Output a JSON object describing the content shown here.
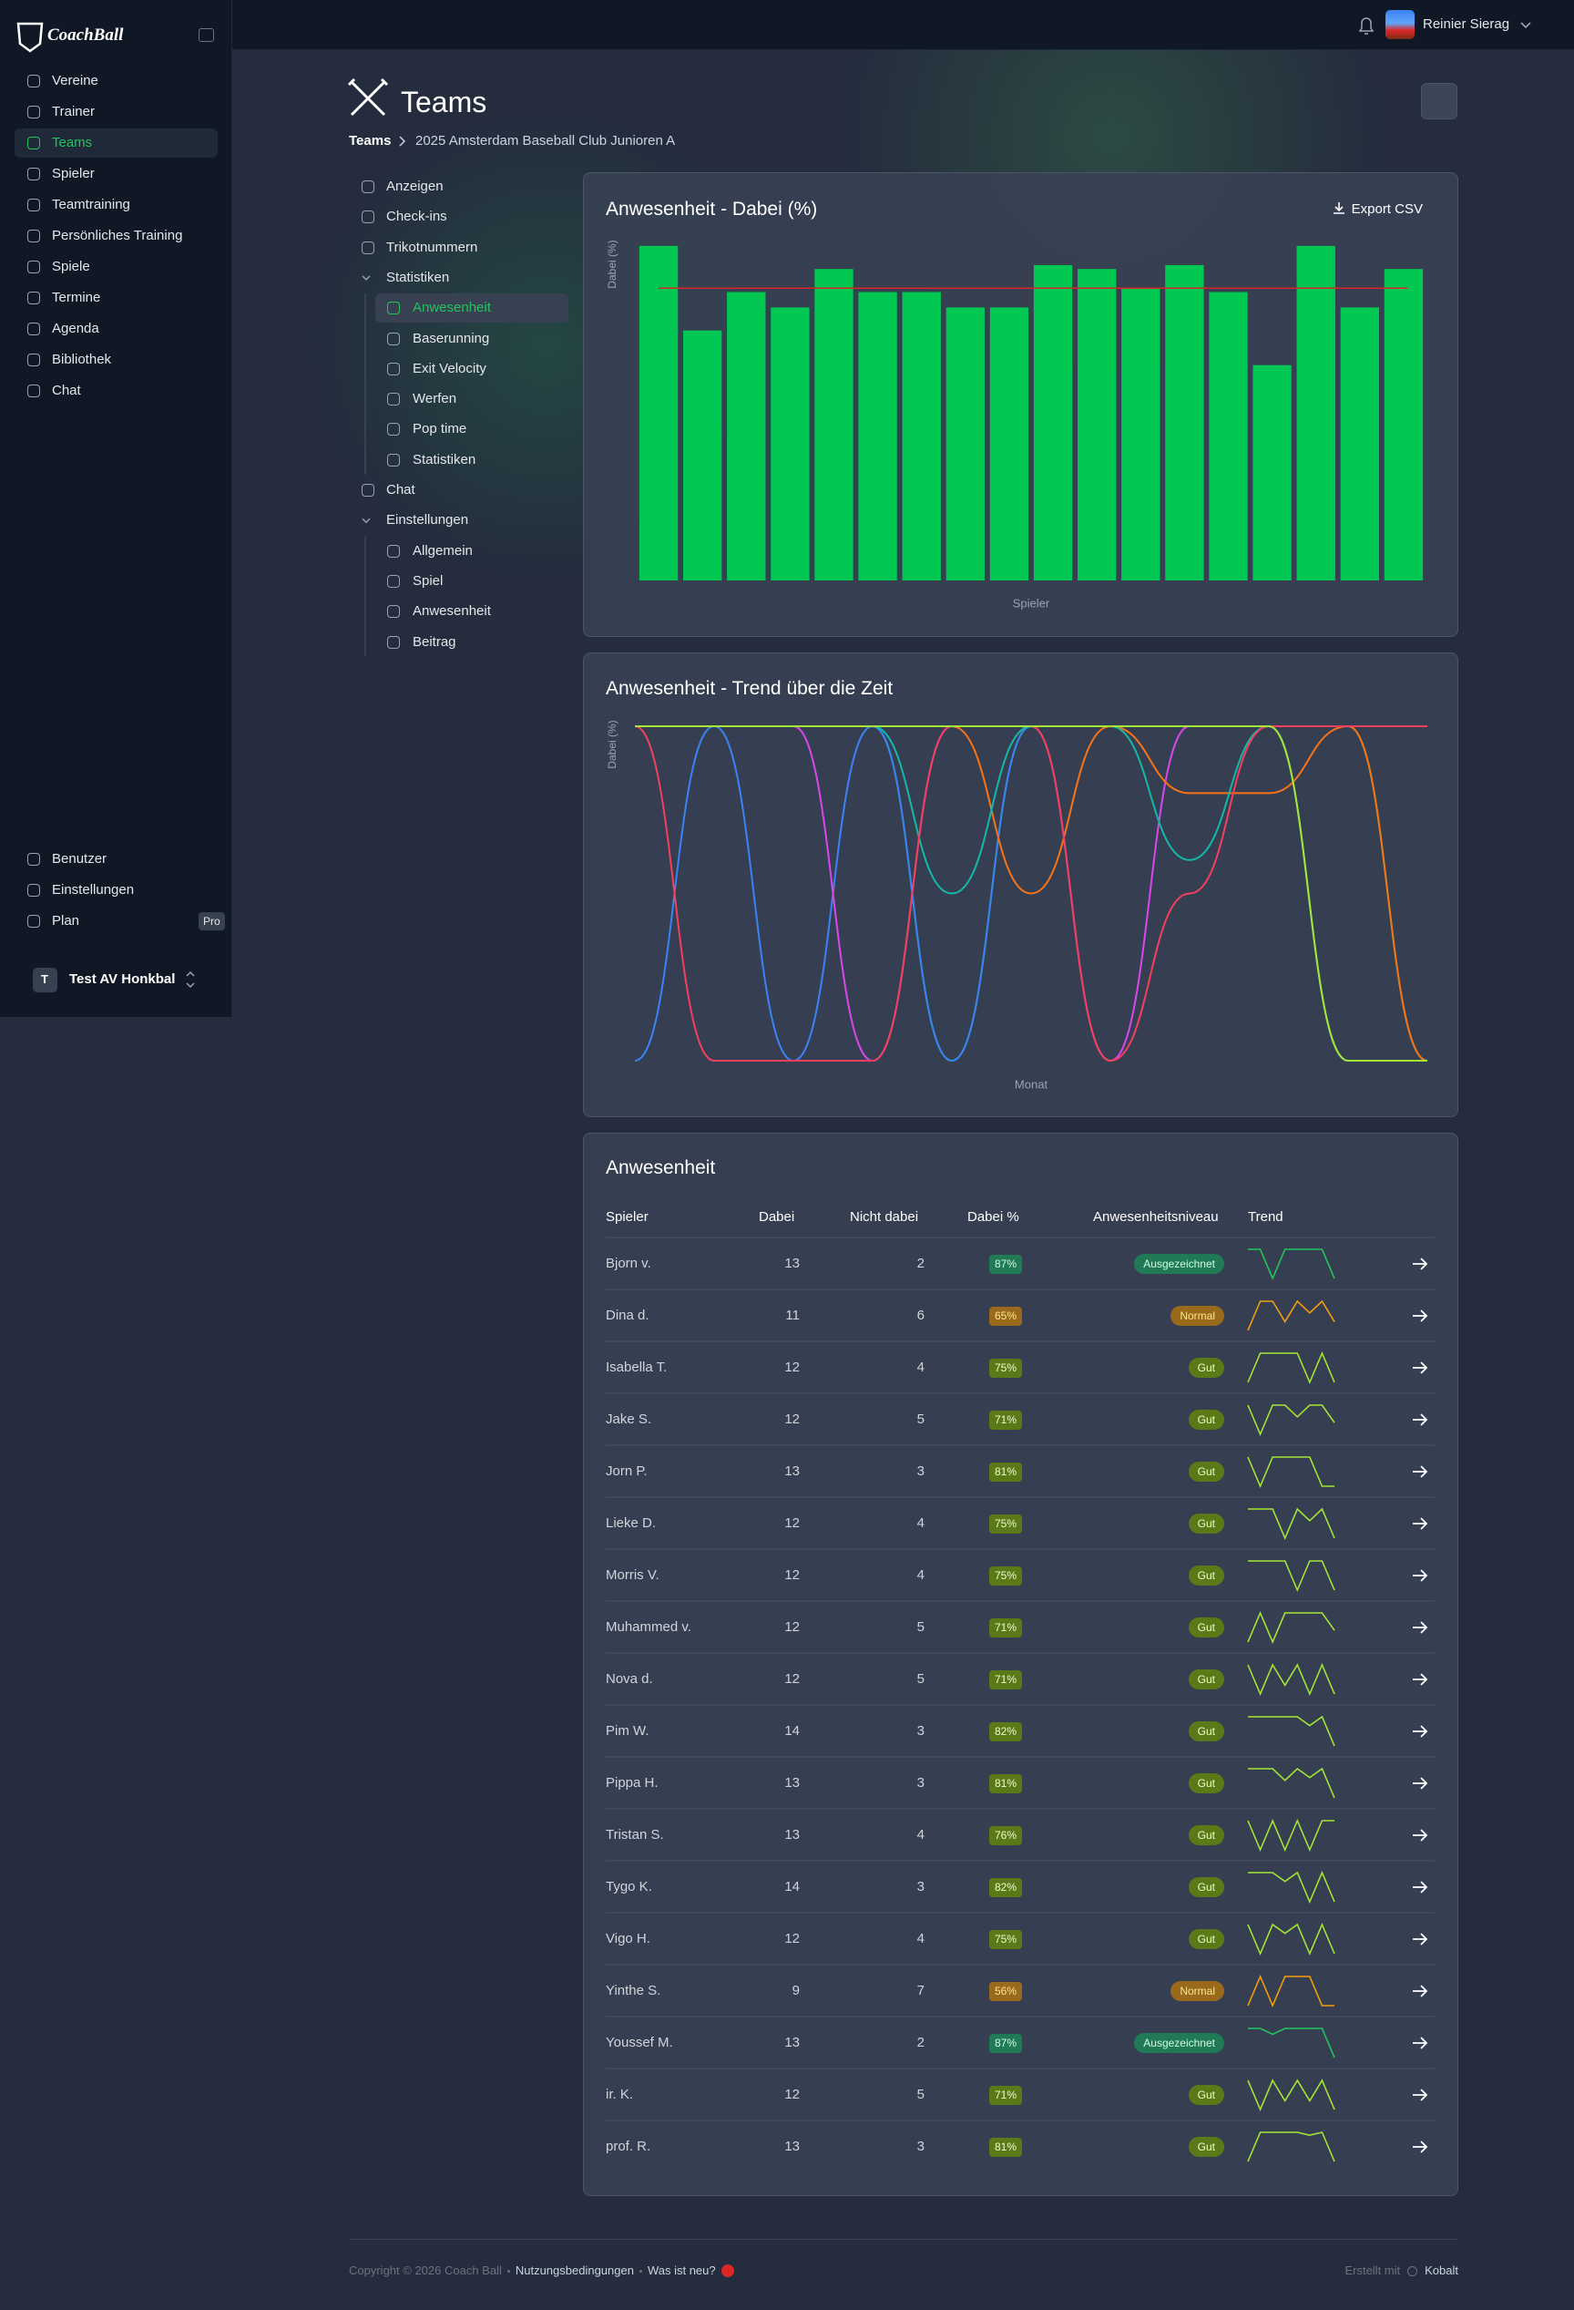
{
  "sidebar": {
    "brand": "CoachBall",
    "nav": [
      "Vereine",
      "Trainer",
      "Teams",
      "Spieler",
      "Teamtraining",
      "Persönliches Training",
      "Spiele",
      "Termine",
      "Agenda",
      "Bibliothek",
      "Chat"
    ],
    "active_index": 2,
    "bottom_nav": [
      "Benutzer",
      "Einstellungen",
      "Plan"
    ],
    "plan_badge": "Pro",
    "team": {
      "initial": "T",
      "name": "Test AV Honkbal"
    }
  },
  "topbar": {
    "user": "Reinier Sierag"
  },
  "header": {
    "title": "Teams",
    "breadcrumb": [
      "Teams",
      "2025 Amsterdam Baseball Club Junioren A"
    ]
  },
  "subnav": [
    {
      "label": "Anzeigen"
    },
    {
      "label": "Check-ins"
    },
    {
      "label": "Trikotnummern"
    },
    {
      "label": "Statistiken",
      "children": [
        {
          "label": "Anwesenheit",
          "active": true
        },
        {
          "label": "Baserunning"
        },
        {
          "label": "Exit Velocity"
        },
        {
          "label": "Werfen"
        },
        {
          "label": "Pop time"
        },
        {
          "label": "Statistiken"
        }
      ]
    },
    {
      "label": "Chat"
    },
    {
      "label": "Einstellungen",
      "children": [
        {
          "label": "Allgemein"
        },
        {
          "label": "Spiel"
        },
        {
          "label": "Anwesenheit"
        },
        {
          "label": "Beitrag"
        }
      ]
    }
  ],
  "chart_data": [
    {
      "type": "bar",
      "title": "Anwesenheit - Dabei (%)",
      "button": "Export CSV",
      "ylabel": "Dabei (%)",
      "xlabel": "Spieler",
      "color": "#00c853",
      "values": [
        87,
        65,
        75,
        71,
        81,
        75,
        75,
        71,
        71,
        82,
        81,
        76,
        82,
        75,
        56,
        87,
        71,
        81
      ],
      "ylim": [
        0,
        100
      ],
      "mean": 76,
      "mean_color": "#dc2626"
    },
    {
      "type": "line",
      "title": "Anwesenheit - Trend über die Zeit",
      "ylabel": "Dabei (%)",
      "xlabel": "Monat",
      "ylim": [
        0,
        100
      ],
      "series": [
        {
          "color": "#22c55e",
          "values": [
            100,
            100,
            100,
            100,
            0,
            100,
            100,
            100,
            100,
            100,
            0
          ]
        },
        {
          "color": "#3b82f6",
          "values": [
            0,
            100,
            0,
            100,
            0,
            100,
            100,
            100,
            100,
            100,
            100
          ]
        },
        {
          "color": "#d946ef",
          "values": [
            100,
            100,
            100,
            0,
            100,
            100,
            0,
            100,
            100,
            0,
            0
          ]
        },
        {
          "color": "#f97316",
          "values": [
            100,
            100,
            100,
            100,
            100,
            50,
            100,
            80,
            80,
            100,
            0
          ]
        },
        {
          "color": "#14b8a6",
          "values": [
            100,
            100,
            100,
            100,
            50,
            100,
            100,
            60,
            100,
            0,
            0
          ]
        },
        {
          "color": "#f43f5e",
          "values": [
            100,
            0,
            0,
            0,
            100,
            100,
            0,
            50,
            100,
            100,
            100
          ]
        },
        {
          "color": "#a3e635",
          "values": [
            100,
            100,
            100,
            100,
            100,
            100,
            100,
            100,
            100,
            0,
            0
          ]
        }
      ]
    }
  ],
  "table": {
    "title": "Anwesenheit",
    "columns": [
      "Spieler",
      "Dabei",
      "Nicht dabei",
      "Dabei %",
      "Anwesenheitsniveau",
      "Trend"
    ],
    "trend_ylim": [
      0,
      100
    ],
    "rows": [
      {
        "player": "Bjorn v.",
        "present": 13,
        "absent": 2,
        "pct": "87%",
        "level": "Ausgezeichnet",
        "tone": "excellent",
        "trend": [
          100,
          100,
          0,
          100,
          100,
          100,
          100,
          0
        ]
      },
      {
        "player": "Dina d.",
        "present": 11,
        "absent": 6,
        "pct": "65%",
        "level": "Normal",
        "tone": "normal",
        "trend": [
          0,
          100,
          100,
          30,
          100,
          60,
          100,
          30
        ]
      },
      {
        "player": "Isabella T.",
        "present": 12,
        "absent": 4,
        "pct": "75%",
        "level": "Gut",
        "tone": "good",
        "trend": [
          0,
          100,
          100,
          100,
          100,
          0,
          100,
          0
        ]
      },
      {
        "player": "Jake S.",
        "present": 12,
        "absent": 5,
        "pct": "71%",
        "level": "Gut",
        "tone": "good",
        "trend": [
          100,
          0,
          100,
          100,
          60,
          100,
          100,
          40
        ]
      },
      {
        "player": "Jorn P.",
        "present": 13,
        "absent": 3,
        "pct": "81%",
        "level": "Gut",
        "tone": "good",
        "trend": [
          100,
          0,
          100,
          100,
          100,
          100,
          0,
          0
        ]
      },
      {
        "player": "Lieke D.",
        "present": 12,
        "absent": 4,
        "pct": "75%",
        "level": "Gut",
        "tone": "good",
        "trend": [
          100,
          100,
          100,
          0,
          100,
          60,
          100,
          0
        ]
      },
      {
        "player": "Morris V.",
        "present": 12,
        "absent": 4,
        "pct": "75%",
        "level": "Gut",
        "tone": "good",
        "trend": [
          100,
          100,
          100,
          100,
          0,
          100,
          100,
          0
        ]
      },
      {
        "player": "Muhammed v.",
        "present": 12,
        "absent": 5,
        "pct": "71%",
        "level": "Gut",
        "tone": "good",
        "trend": [
          0,
          100,
          0,
          100,
          100,
          100,
          100,
          40
        ]
      },
      {
        "player": "Nova d.",
        "present": 12,
        "absent": 5,
        "pct": "71%",
        "level": "Gut",
        "tone": "good",
        "trend": [
          100,
          0,
          100,
          30,
          100,
          0,
          100,
          0
        ]
      },
      {
        "player": "Pim W.",
        "present": 14,
        "absent": 3,
        "pct": "82%",
        "level": "Gut",
        "tone": "good",
        "trend": [
          100,
          100,
          100,
          100,
          100,
          70,
          100,
          0
        ]
      },
      {
        "player": "Pippa H.",
        "present": 13,
        "absent": 3,
        "pct": "81%",
        "level": "Gut",
        "tone": "good",
        "trend": [
          100,
          100,
          100,
          60,
          100,
          70,
          100,
          0
        ]
      },
      {
        "player": "Tristan S.",
        "present": 13,
        "absent": 4,
        "pct": "76%",
        "level": "Gut",
        "tone": "good",
        "trend": [
          100,
          0,
          100,
          0,
          100,
          0,
          100,
          100
        ]
      },
      {
        "player": "Tygo K.",
        "present": 14,
        "absent": 3,
        "pct": "82%",
        "level": "Gut",
        "tone": "good",
        "trend": [
          100,
          100,
          100,
          70,
          100,
          0,
          100,
          0
        ]
      },
      {
        "player": "Vigo H.",
        "present": 12,
        "absent": 4,
        "pct": "75%",
        "level": "Gut",
        "tone": "good",
        "trend": [
          100,
          0,
          100,
          70,
          100,
          0,
          100,
          0
        ]
      },
      {
        "player": "Yinthe S.",
        "present": 9,
        "absent": 7,
        "pct": "56%",
        "level": "Normal",
        "tone": "normal",
        "trend": [
          0,
          100,
          0,
          100,
          100,
          100,
          0,
          0
        ]
      },
      {
        "player": "Youssef M.",
        "present": 13,
        "absent": 2,
        "pct": "87%",
        "level": "Ausgezeichnet",
        "tone": "excellent",
        "trend": [
          100,
          100,
          80,
          100,
          100,
          100,
          100,
          0
        ]
      },
      {
        "player": "ir. K.",
        "present": 12,
        "absent": 5,
        "pct": "71%",
        "level": "Gut",
        "tone": "good",
        "trend": [
          100,
          0,
          100,
          30,
          100,
          30,
          100,
          0
        ]
      },
      {
        "player": "prof. R.",
        "present": 13,
        "absent": 3,
        "pct": "81%",
        "level": "Gut",
        "tone": "good",
        "trend": [
          0,
          100,
          100,
          100,
          100,
          90,
          100,
          0
        ]
      }
    ]
  },
  "footer": {
    "copyright": "Copyright © 2026 Coach Ball",
    "links": [
      "Nutzungsbedingungen",
      "Was ist neu?"
    ],
    "made_with": "Erstellt mit",
    "maker": "Kobalt"
  }
}
